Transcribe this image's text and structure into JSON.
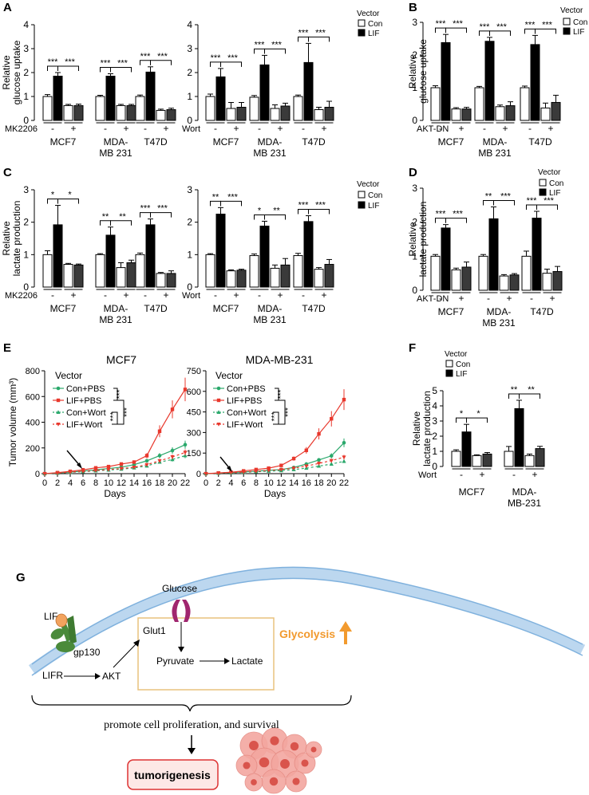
{
  "panel_letters": {
    "A": "A",
    "B": "B",
    "C": "C",
    "D": "D",
    "E": "E",
    "F": "F",
    "G": "G"
  },
  "colors": {
    "red": "#e8382d",
    "green": "#2aa86b",
    "membrane": "#bcd7ef",
    "glut": "#a0266f",
    "lif": "#f2a35e",
    "gp130": "#4a8a3a",
    "glycolysis": "#f29a2e",
    "tumor_box": "#d33",
    "tumor_fill": "#fde8e6"
  },
  "chart_data": [
    {
      "id": "A1",
      "type": "bar",
      "ylabel": [
        "Relative",
        "glucose uptake"
      ],
      "ylim": [
        0,
        4
      ],
      "yticks": [
        0,
        1,
        2,
        3,
        4
      ],
      "groups": [
        {
          "label": [
            "MCF7"
          ],
          "values": [
            1.0,
            1.85,
            0.62,
            0.62
          ],
          "errors": [
            0.08,
            0.15,
            0.05,
            0.06
          ],
          "sig": [
            "***",
            "***"
          ]
        },
        {
          "label": [
            "MDA-",
            "MB 231"
          ],
          "values": [
            1.0,
            1.85,
            0.62,
            0.62
          ],
          "errors": [
            0.05,
            0.1,
            0.05,
            0.05
          ],
          "sig": [
            "***",
            "***"
          ]
        },
        {
          "label": [
            "T47D"
          ],
          "values": [
            1.0,
            2.02,
            0.42,
            0.45
          ],
          "errors": [
            0.06,
            0.22,
            0.05,
            0.06
          ],
          "sig": [
            "***",
            "***"
          ]
        }
      ],
      "treatment": "MK2206",
      "signs": [
        "-",
        "+"
      ]
    },
    {
      "id": "A2",
      "type": "bar",
      "ylim": [
        0,
        4
      ],
      "yticks": [
        0,
        1,
        2,
        3,
        4
      ],
      "groups": [
        {
          "label": [
            "MCF7"
          ],
          "values": [
            1.0,
            1.82,
            0.5,
            0.55
          ],
          "errors": [
            0.1,
            0.35,
            0.25,
            0.2
          ],
          "sig": [
            "***",
            "***"
          ]
        },
        {
          "label": [
            "MDA-",
            "MB 231"
          ],
          "values": [
            0.97,
            2.32,
            0.5,
            0.6
          ],
          "errors": [
            0.07,
            0.4,
            0.15,
            0.12
          ],
          "sig": [
            "***",
            "***"
          ]
        },
        {
          "label": [
            "T47D"
          ],
          "values": [
            1.0,
            2.42,
            0.45,
            0.55
          ],
          "errors": [
            0.06,
            0.8,
            0.1,
            0.25
          ],
          "sig": [
            "***",
            "***"
          ]
        }
      ],
      "treatment": "Wort",
      "signs": [
        "-",
        "+"
      ]
    },
    {
      "id": "B",
      "type": "bar",
      "ylabel": [
        "Relative",
        "glucose uptake"
      ],
      "ylim": [
        0,
        3
      ],
      "yticks": [
        0,
        1,
        2,
        3
      ],
      "groups": [
        {
          "label": [
            "MCF7"
          ],
          "values": [
            1.0,
            2.38,
            0.35,
            0.35
          ],
          "errors": [
            0.06,
            0.25,
            0.04,
            0.05
          ],
          "sig": [
            "***",
            "***"
          ]
        },
        {
          "label": [
            "MDA-",
            "MB 231"
          ],
          "values": [
            1.0,
            2.42,
            0.42,
            0.45
          ],
          "errors": [
            0.04,
            0.12,
            0.05,
            0.12
          ],
          "sig": [
            "***",
            "***"
          ]
        },
        {
          "label": [
            "T47D"
          ],
          "values": [
            1.0,
            2.32,
            0.38,
            0.55
          ],
          "errors": [
            0.05,
            0.28,
            0.15,
            0.22
          ],
          "sig": [
            "***",
            "***"
          ]
        }
      ],
      "treatment": "AKT-DN",
      "signs": [
        "-",
        "+"
      ]
    },
    {
      "id": "C1",
      "type": "bar",
      "ylabel": [
        "Relative",
        "lactate production"
      ],
      "ylim": [
        0,
        3
      ],
      "yticks": [
        0,
        1,
        2,
        3
      ],
      "groups": [
        {
          "label": [
            "MCF7"
          ],
          "values": [
            1.0,
            1.92,
            0.7,
            0.68
          ],
          "errors": [
            0.12,
            0.6,
            0.03,
            0.03
          ],
          "sig": [
            "*",
            "*"
          ]
        },
        {
          "label": [
            "MDA-",
            "MB 231"
          ],
          "values": [
            1.0,
            1.6,
            0.6,
            0.75
          ],
          "errors": [
            0.03,
            0.25,
            0.15,
            0.08
          ],
          "sig": [
            "**",
            "**"
          ]
        },
        {
          "label": [
            "T47D"
          ],
          "values": [
            1.0,
            1.92,
            0.42,
            0.42
          ],
          "errors": [
            0.05,
            0.18,
            0.03,
            0.08
          ],
          "sig": [
            "***",
            "***"
          ]
        }
      ],
      "treatment": "MK2206",
      "signs": [
        "-",
        "+"
      ]
    },
    {
      "id": "C2",
      "type": "bar",
      "ylim": [
        0,
        3
      ],
      "yticks": [
        0,
        1,
        2,
        3
      ],
      "groups": [
        {
          "label": [
            "MCF7"
          ],
          "values": [
            1.0,
            2.25,
            0.5,
            0.52
          ],
          "errors": [
            0.03,
            0.2,
            0.03,
            0.03
          ],
          "sig": [
            "**",
            "***"
          ]
        },
        {
          "label": [
            "MDA-",
            "MB 231"
          ],
          "values": [
            0.97,
            1.88,
            0.58,
            0.68
          ],
          "errors": [
            0.05,
            0.15,
            0.1,
            0.2
          ],
          "sig": [
            "*",
            "**"
          ]
        },
        {
          "label": [
            "T47D"
          ],
          "values": [
            0.97,
            2.02,
            0.55,
            0.7
          ],
          "errors": [
            0.07,
            0.18,
            0.05,
            0.15
          ],
          "sig": [
            "***",
            "***"
          ]
        }
      ],
      "treatment": "Wort",
      "signs": [
        "-",
        "+"
      ]
    },
    {
      "id": "D",
      "type": "bar",
      "ylabel": [
        "Relative",
        "lactate production"
      ],
      "ylim": [
        0,
        3
      ],
      "yticks": [
        0,
        1,
        2,
        3
      ],
      "groups": [
        {
          "label": [
            "MCF7"
          ],
          "values": [
            1.0,
            1.83,
            0.6,
            0.68
          ],
          "errors": [
            0.05,
            0.1,
            0.05,
            0.15
          ],
          "sig": [
            "***",
            "***"
          ]
        },
        {
          "label": [
            "MDA-",
            "MB 231"
          ],
          "values": [
            1.0,
            2.1,
            0.42,
            0.45
          ],
          "errors": [
            0.05,
            0.35,
            0.04,
            0.04
          ],
          "sig": [
            "**",
            "***"
          ]
        },
        {
          "label": [
            "T47D"
          ],
          "values": [
            1.0,
            2.12,
            0.5,
            0.55
          ],
          "errors": [
            0.15,
            0.2,
            0.12,
            0.15
          ],
          "sig": [
            "***",
            "***"
          ]
        }
      ],
      "treatment": "AKT-DN",
      "signs": [
        "-",
        "+"
      ]
    },
    {
      "id": "E1",
      "type": "line",
      "title": "MCF7",
      "ylabel": "Tumor volume (mm³)",
      "xlabel": "Days",
      "ylim": [
        0,
        800
      ],
      "yticks": [
        0,
        200,
        400,
        600,
        800
      ],
      "x": [
        0,
        2,
        4,
        6,
        8,
        10,
        12,
        14,
        16,
        18,
        20,
        22
      ],
      "series": [
        {
          "name": "Con+PBS",
          "values": [
            0,
            5,
            12,
            20,
            30,
            40,
            50,
            70,
            100,
            140,
            180,
            225
          ]
        },
        {
          "name": "LIF+PBS",
          "values": [
            0,
            8,
            18,
            30,
            45,
            55,
            75,
            90,
            140,
            330,
            500,
            655
          ]
        },
        {
          "name": "Con+Wort",
          "values": [
            0,
            4,
            10,
            15,
            22,
            28,
            35,
            45,
            60,
            90,
            110,
            140
          ]
        },
        {
          "name": "LIF+Wort",
          "values": [
            0,
            5,
            12,
            18,
            25,
            32,
            40,
            50,
            70,
            100,
            130,
            165
          ]
        }
      ]
    },
    {
      "id": "E2",
      "type": "line",
      "title": "MDA-MB-231",
      "xlabel": "Days",
      "ylim": [
        0,
        750
      ],
      "yticks": [
        0,
        150,
        300,
        450,
        600,
        750
      ],
      "x": [
        0,
        2,
        4,
        6,
        8,
        10,
        12,
        14,
        16,
        18,
        20,
        22
      ],
      "series": [
        {
          "name": "Con+PBS",
          "values": [
            0,
            4,
            8,
            12,
            18,
            24,
            30,
            45,
            70,
            100,
            130,
            225
          ]
        },
        {
          "name": "LIF+PBS",
          "values": [
            0,
            5,
            10,
            20,
            30,
            40,
            60,
            110,
            170,
            290,
            400,
            540
          ]
        },
        {
          "name": "Con+Wort",
          "values": [
            0,
            3,
            6,
            10,
            14,
            18,
            22,
            30,
            40,
            55,
            70,
            90
          ]
        },
        {
          "name": "LIF+Wort",
          "values": [
            0,
            4,
            8,
            12,
            18,
            24,
            30,
            40,
            55,
            75,
            95,
            120
          ]
        }
      ]
    },
    {
      "id": "F",
      "type": "bar",
      "ylabel": [
        "Relative",
        "lactate production"
      ],
      "ylim": [
        0,
        5
      ],
      "yticks": [
        0,
        1,
        2,
        3,
        4,
        5
      ],
      "groups": [
        {
          "label": [
            "MCF7"
          ],
          "values": [
            1.0,
            2.28,
            0.72,
            0.82
          ],
          "errors": [
            0.1,
            0.5,
            0.05,
            0.1
          ],
          "sig": [
            "*",
            "*"
          ]
        },
        {
          "label": [
            "MDA-",
            "MB-231"
          ],
          "values": [
            1.0,
            3.82,
            0.72,
            1.18
          ],
          "errors": [
            0.32,
            0.55,
            0.1,
            0.15
          ],
          "sig": [
            "**",
            "**"
          ]
        }
      ],
      "treatment": "Wort",
      "signs": [
        "-",
        "+"
      ]
    }
  ],
  "legends": {
    "vector": "Vector",
    "con": "Con",
    "lif": "LIF",
    "e_series": [
      "Con+PBS",
      "LIF+PBS",
      "Con+Wort",
      "LIF+Wort"
    ],
    "e_sig": [
      "***",
      "***",
      "***",
      "***"
    ]
  },
  "diagram": {
    "glucose": "Glucose",
    "glut1": "Glut1",
    "lif": "LIF",
    "gp130": "gp130",
    "lifr": "LIFR",
    "akt": "AKT",
    "pyruvate": "Pyruvate",
    "lactate": "Lactate",
    "glycolysis": "Glycolysis",
    "caption": "promote cell proliferation, and survival",
    "tumor": "tumorigenesis"
  }
}
